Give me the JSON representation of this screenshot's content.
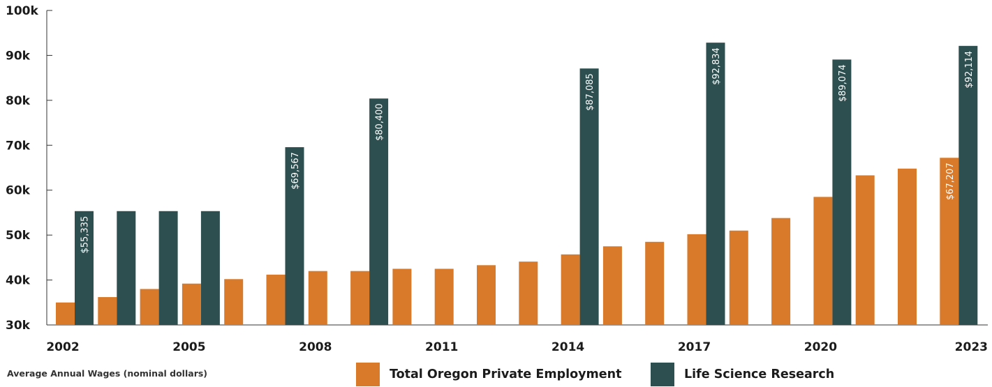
{
  "chart_data": {
    "type": "bar",
    "title": "",
    "xlabel": "",
    "ylabel": "",
    "note": "Average Annual Wages (nominal dollars)",
    "ylim": [
      30000,
      100000
    ],
    "y_ticks": [
      "30k",
      "40k",
      "50k",
      "60k",
      "70k",
      "80k",
      "90k",
      "100k"
    ],
    "categories": [
      "2002",
      "2003",
      "2004",
      "2005",
      "2006",
      "2007",
      "2008",
      "2009",
      "2010",
      "2011",
      "2012",
      "2013",
      "2014",
      "2015",
      "2016",
      "2017",
      "2018",
      "2019",
      "2020",
      "2021",
      "2022",
      "2023"
    ],
    "x_tick_labels": [
      "2002",
      "",
      "",
      "2005",
      "",
      "",
      "2008",
      "",
      "",
      "2011",
      "",
      "",
      "2014",
      "",
      "",
      "2017",
      "",
      "",
      "2020",
      "",
      "",
      "2023"
    ],
    "series": [
      {
        "name": "Total Oregon Private Employment",
        "color": "#d97a2b",
        "values": [
          35000,
          36200,
          38000,
          39200,
          40200,
          41200,
          42000,
          42000,
          42500,
          42500,
          43300,
          44100,
          45700,
          47500,
          48500,
          50200,
          51000,
          53800,
          58500,
          63300,
          64800,
          67207
        ],
        "data_labels": [
          "",
          "",
          "",
          "",
          "",
          "",
          "",
          "",
          "",
          "",
          "",
          "",
          "",
          "",
          "",
          "",
          "",
          "",
          "",
          "",
          "",
          "$67,207"
        ]
      },
      {
        "name": "Life Science Research",
        "color": "#2e4f50",
        "values": [
          55335,
          55335,
          55335,
          55335,
          null,
          69567,
          null,
          80400,
          null,
          null,
          null,
          null,
          87085,
          null,
          null,
          92834,
          null,
          null,
          89074,
          null,
          null,
          92114
        ],
        "data_labels": [
          "$55,335",
          "",
          "",
          "",
          "",
          "$69,567",
          "",
          "$80,400",
          "",
          "",
          "",
          "",
          "$87,085",
          "",
          "",
          "$92,834",
          "",
          "",
          "$89,074",
          "",
          "",
          "$92,114"
        ]
      }
    ],
    "grid": false,
    "legend": "bottom-center"
  }
}
